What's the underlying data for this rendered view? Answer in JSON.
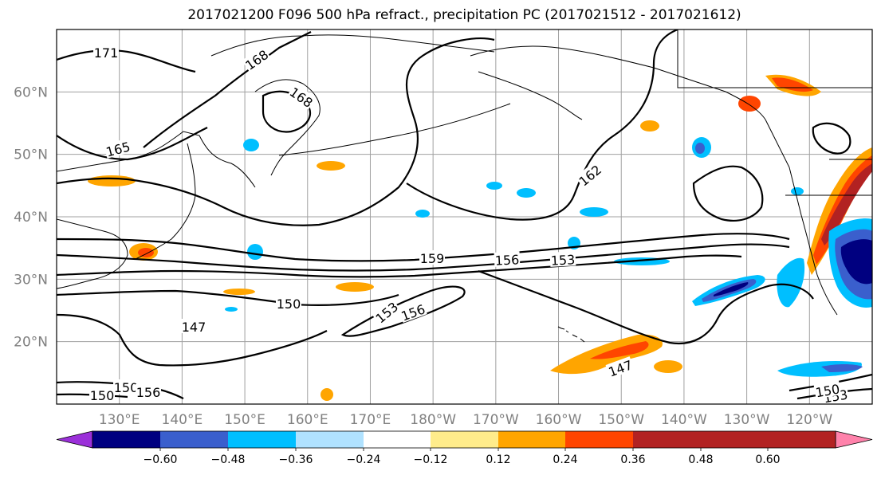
{
  "title": "2017021200 F096 500 hPa refract., precipitation PC (2017021512 - 2017021612)",
  "lat_labels": [
    {
      "text": "60°N",
      "lat": 60
    },
    {
      "text": "50°N",
      "lat": 50
    },
    {
      "text": "40°N",
      "lat": 40
    },
    {
      "text": "30°N",
      "lat": 30
    },
    {
      "text": "20°N",
      "lat": 20
    }
  ],
  "lon_labels": [
    {
      "text": "130°E",
      "lon": 130
    },
    {
      "text": "140°E",
      "lon": 140
    },
    {
      "text": "150°E",
      "lon": 150
    },
    {
      "text": "160°E",
      "lon": 160
    },
    {
      "text": "170°E",
      "lon": 170
    },
    {
      "text": "180°W",
      "lon": 180
    },
    {
      "text": "170°W",
      "lon": 190
    },
    {
      "text": "160°W",
      "lon": 200
    },
    {
      "text": "150°W",
      "lon": 210
    },
    {
      "text": "140°W",
      "lon": 220
    },
    {
      "text": "130°W",
      "lon": 230
    },
    {
      "text": "120°W",
      "lon": 240
    }
  ],
  "contour_labels": [
    "171",
    "168",
    "168",
    "165",
    "162",
    "159",
    "156",
    "153",
    "150",
    "147",
    "153",
    "156",
    "147",
    "150",
    "153",
    "150",
    "150",
    "156"
  ],
  "colorbar": {
    "colors": [
      "#9b30d9",
      "#000080",
      "#3a5fcd",
      "#00bfff",
      "#b0e2ff",
      "#ffffff",
      "#ffec8b",
      "#ffa500",
      "#ff4500",
      "#b22222",
      "#ff82ab"
    ],
    "ticks": [
      "−0.60",
      "−0.48",
      "−0.36",
      "−0.24",
      "−0.12",
      "0.12",
      "0.24",
      "0.36",
      "0.48",
      "0.60"
    ]
  }
}
